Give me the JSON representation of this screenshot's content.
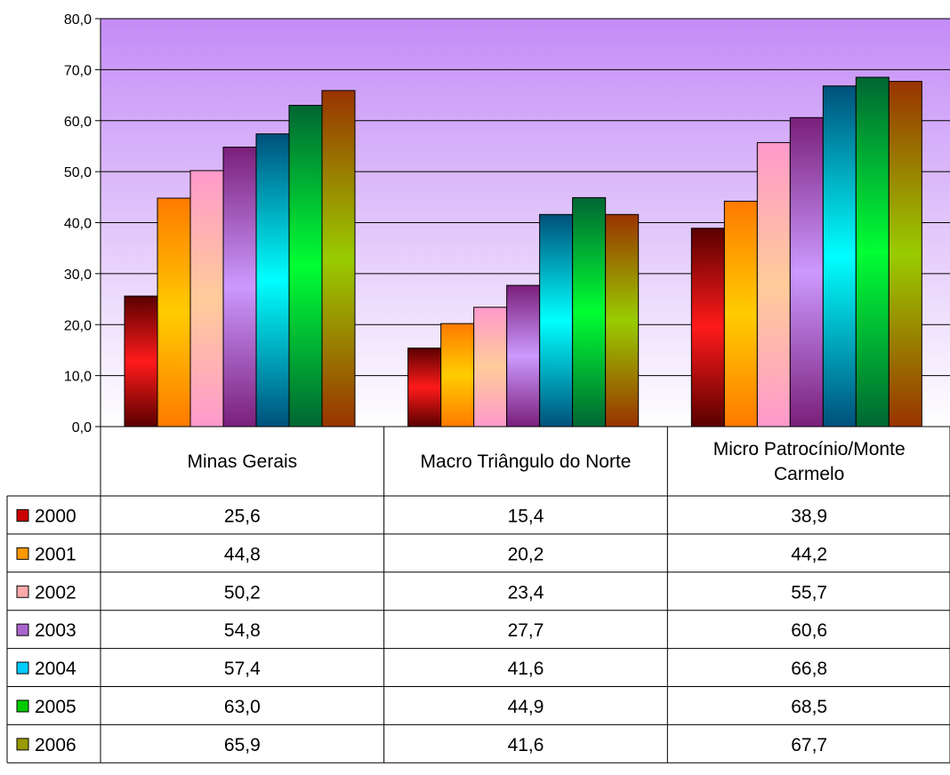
{
  "chart_data": {
    "type": "bar",
    "categories": [
      "Minas Gerais",
      "Macro Triângulo do Norte",
      "Micro Patrocínio/Monte Carmelo"
    ],
    "category_label_lines": [
      [
        "Minas Gerais"
      ],
      [
        "Macro Triângulo do Norte"
      ],
      [
        "Micro Patrocínio/Monte",
        "Carmelo"
      ]
    ],
    "series": [
      {
        "name": "2000",
        "values": [
          25.6,
          15.4,
          38.9
        ],
        "colors": [
          "#5a0000",
          "#ff1a1a",
          "#5a0000"
        ],
        "swatch": "#cc0000"
      },
      {
        "name": "2001",
        "values": [
          44.8,
          20.2,
          44.2
        ],
        "colors": [
          "#ff7a00",
          "#ffcc00",
          "#ff7a00"
        ],
        "swatch": "#ff9900"
      },
      {
        "name": "2002",
        "values": [
          50.2,
          23.4,
          55.7
        ],
        "colors": [
          "#ff99cc",
          "#ffcc99",
          "#ff99cc"
        ],
        "swatch": "#ffaaaa"
      },
      {
        "name": "2003",
        "values": [
          54.8,
          27.7,
          60.6
        ],
        "colors": [
          "#7a1f7a",
          "#cc99ff",
          "#7a1f7a"
        ],
        "swatch": "#aa66cc"
      },
      {
        "name": "2004",
        "values": [
          57.4,
          41.6,
          66.8
        ],
        "colors": [
          "#00507a",
          "#00ffff",
          "#00507a"
        ],
        "swatch": "#00ccff"
      },
      {
        "name": "2005",
        "values": [
          63.0,
          44.9,
          68.5
        ],
        "colors": [
          "#006633",
          "#00ff33",
          "#006633"
        ],
        "swatch": "#00cc00"
      },
      {
        "name": "2006",
        "values": [
          65.9,
          41.6,
          67.7
        ],
        "colors": [
          "#993300",
          "#99cc00",
          "#993300"
        ],
        "swatch": "#999900"
      }
    ],
    "table_values": [
      [
        "25,6",
        "15,4",
        "38,9"
      ],
      [
        "44,8",
        "20,2",
        "44,2"
      ],
      [
        "50,2",
        "23,4",
        "55,7"
      ],
      [
        "54,8",
        "27,7",
        "60,6"
      ],
      [
        "57,4",
        "41,6",
        "66,8"
      ],
      [
        "63,0",
        "44,9",
        "68,5"
      ],
      [
        "65,9",
        "41,6",
        "67,7"
      ]
    ],
    "ylim": [
      0,
      80
    ],
    "yticks": [
      0,
      10,
      20,
      30,
      40,
      50,
      60,
      70,
      80
    ],
    "ytick_labels": [
      "0,0",
      "10,0",
      "20,0",
      "30,0",
      "40,0",
      "50,0",
      "60,0",
      "70,0",
      "80,0"
    ],
    "grid": true,
    "legend": "data-table-left",
    "plot_background": [
      "#c48cf7",
      "#ffffff"
    ],
    "title": "",
    "xlabel": "",
    "ylabel": ""
  }
}
